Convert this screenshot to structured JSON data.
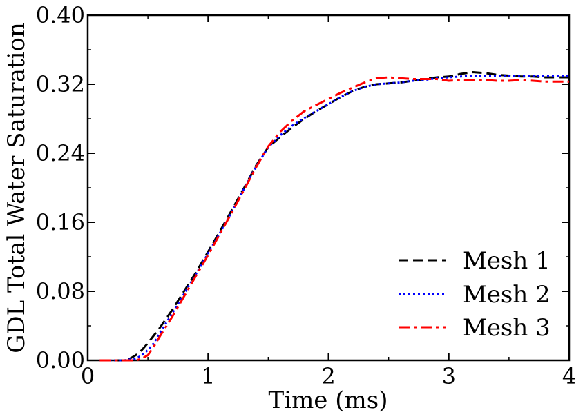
{
  "chart_data": {
    "type": "line",
    "title": "",
    "xlabel": "Time (ms)",
    "ylabel": "GDL Total Water Saturation",
    "xlim": [
      0,
      4
    ],
    "ylim": [
      0,
      0.4
    ],
    "xticks": [
      0,
      1,
      2,
      3,
      4
    ],
    "xtick_labels": [
      "0",
      "1",
      "2",
      "3",
      "4"
    ],
    "yticks": [
      0,
      0.08,
      0.16,
      0.24,
      0.32,
      0.4
    ],
    "ytick_labels": [
      "0.00",
      "0.08",
      "0.16",
      "0.24",
      "0.32",
      "0.40"
    ],
    "grid": false,
    "legend_position": "bottom-right",
    "series": [
      {
        "name": "Mesh 1",
        "color": "#000000",
        "dash": "dashed",
        "x": [
          0.1,
          0.2,
          0.3,
          0.35,
          0.4,
          0.45,
          0.5,
          0.6,
          0.7,
          0.8,
          0.9,
          1.0,
          1.1,
          1.2,
          1.3,
          1.4,
          1.5,
          1.6,
          1.7,
          1.8,
          1.9,
          2.0,
          2.1,
          2.2,
          2.3,
          2.4,
          2.5,
          2.6,
          2.7,
          2.8,
          2.9,
          3.0,
          3.1,
          3.2,
          3.3,
          3.4,
          3.5,
          3.6,
          3.7,
          3.8,
          3.9,
          4.0
        ],
        "y": [
          0.0,
          0.0,
          0.0,
          0.002,
          0.006,
          0.012,
          0.02,
          0.038,
          0.058,
          0.08,
          0.102,
          0.126,
          0.15,
          0.175,
          0.2,
          0.226,
          0.247,
          0.259,
          0.27,
          0.28,
          0.289,
          0.297,
          0.305,
          0.312,
          0.317,
          0.32,
          0.321,
          0.322,
          0.324,
          0.326,
          0.328,
          0.329,
          0.332,
          0.334,
          0.333,
          0.331,
          0.33,
          0.329,
          0.329,
          0.328,
          0.328,
          0.328
        ]
      },
      {
        "name": "Mesh 2",
        "color": "#0000ff",
        "dash": "dotted",
        "x": [
          0.1,
          0.2,
          0.3,
          0.4,
          0.45,
          0.5,
          0.55,
          0.6,
          0.7,
          0.8,
          0.9,
          1.0,
          1.1,
          1.2,
          1.3,
          1.4,
          1.5,
          1.6,
          1.7,
          1.8,
          1.9,
          2.0,
          2.1,
          2.2,
          2.3,
          2.4,
          2.5,
          2.6,
          2.7,
          2.8,
          2.9,
          3.0,
          3.1,
          3.2,
          3.3,
          3.4,
          3.5,
          3.6,
          3.7,
          3.8,
          3.9,
          4.0
        ],
        "y": [
          0.0,
          0.0,
          0.0,
          0.002,
          0.006,
          0.012,
          0.02,
          0.032,
          0.054,
          0.077,
          0.1,
          0.124,
          0.148,
          0.173,
          0.199,
          0.225,
          0.247,
          0.261,
          0.272,
          0.281,
          0.289,
          0.297,
          0.305,
          0.312,
          0.317,
          0.32,
          0.321,
          0.322,
          0.324,
          0.325,
          0.327,
          0.328,
          0.329,
          0.33,
          0.33,
          0.33,
          0.33,
          0.33,
          0.33,
          0.33,
          0.33,
          0.33
        ]
      },
      {
        "name": "Mesh 3",
        "color": "#ff0000",
        "dash": "dashdot",
        "x": [
          0.1,
          0.2,
          0.3,
          0.4,
          0.45,
          0.5,
          0.55,
          0.6,
          0.7,
          0.8,
          0.9,
          1.0,
          1.1,
          1.2,
          1.3,
          1.4,
          1.5,
          1.6,
          1.7,
          1.8,
          1.9,
          2.0,
          2.1,
          2.2,
          2.3,
          2.4,
          2.5,
          2.6,
          2.7,
          2.8,
          2.9,
          3.0,
          3.1,
          3.2,
          3.3,
          3.4,
          3.5,
          3.6,
          3.7,
          3.8,
          3.9,
          4.0
        ],
        "y": [
          0.0,
          0.0,
          0.0,
          0.0,
          0.002,
          0.006,
          0.016,
          0.028,
          0.05,
          0.074,
          0.098,
          0.122,
          0.147,
          0.172,
          0.198,
          0.224,
          0.248,
          0.265,
          0.278,
          0.289,
          0.296,
          0.303,
          0.31,
          0.316,
          0.322,
          0.327,
          0.328,
          0.327,
          0.326,
          0.326,
          0.326,
          0.324,
          0.325,
          0.325,
          0.325,
          0.324,
          0.324,
          0.325,
          0.324,
          0.323,
          0.323,
          0.323
        ]
      }
    ]
  }
}
